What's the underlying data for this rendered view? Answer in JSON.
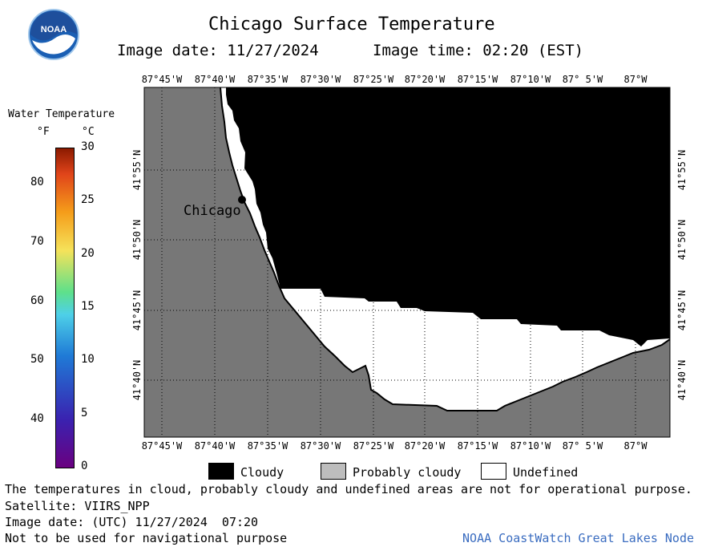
{
  "header": {
    "title": "Chicago Surface Temperature",
    "image_date": "Image date: 11/27/2024",
    "image_time": "Image time: 02:20 (EST)"
  },
  "logo": {
    "text": "NOAA"
  },
  "colorbar": {
    "title": "Water Temperature",
    "unit_f": "°F",
    "unit_c": "°C",
    "f_ticks": [
      "80",
      "70",
      "60",
      "50",
      "40"
    ],
    "c_ticks": [
      "30",
      "25",
      "20",
      "15",
      "10",
      "5",
      "0"
    ]
  },
  "map": {
    "lon_labels": [
      "87°45'W",
      "87°40'W",
      "87°35'W",
      "87°30'W",
      "87°25'W",
      "87°20'W",
      "87°15'W",
      "87°10'W",
      "87° 5'W",
      "87°W"
    ],
    "lat_labels": [
      "41°55'N",
      "41°50'N",
      "41°45'N",
      "41°40'N"
    ],
    "city_label": "Chicago",
    "colors": {
      "land": "#777777",
      "cloudy": "#000000",
      "undefined": "#ffffff"
    }
  },
  "legend": {
    "cloudy": "Cloudy",
    "probably_cloudy": "Probably cloudy",
    "undefined": "Undefined"
  },
  "footer": {
    "note": "The temperatures in cloud, probably cloudy and undefined areas are not for operational purpose.",
    "satellite": "Satellite: VIIRS_NPP",
    "utc_date": "Image date: (UTC) 11/27/2024  07:20",
    "nav": "Not to be used for navigational purpose",
    "credit": "NOAA CoastWatch Great Lakes Node"
  }
}
